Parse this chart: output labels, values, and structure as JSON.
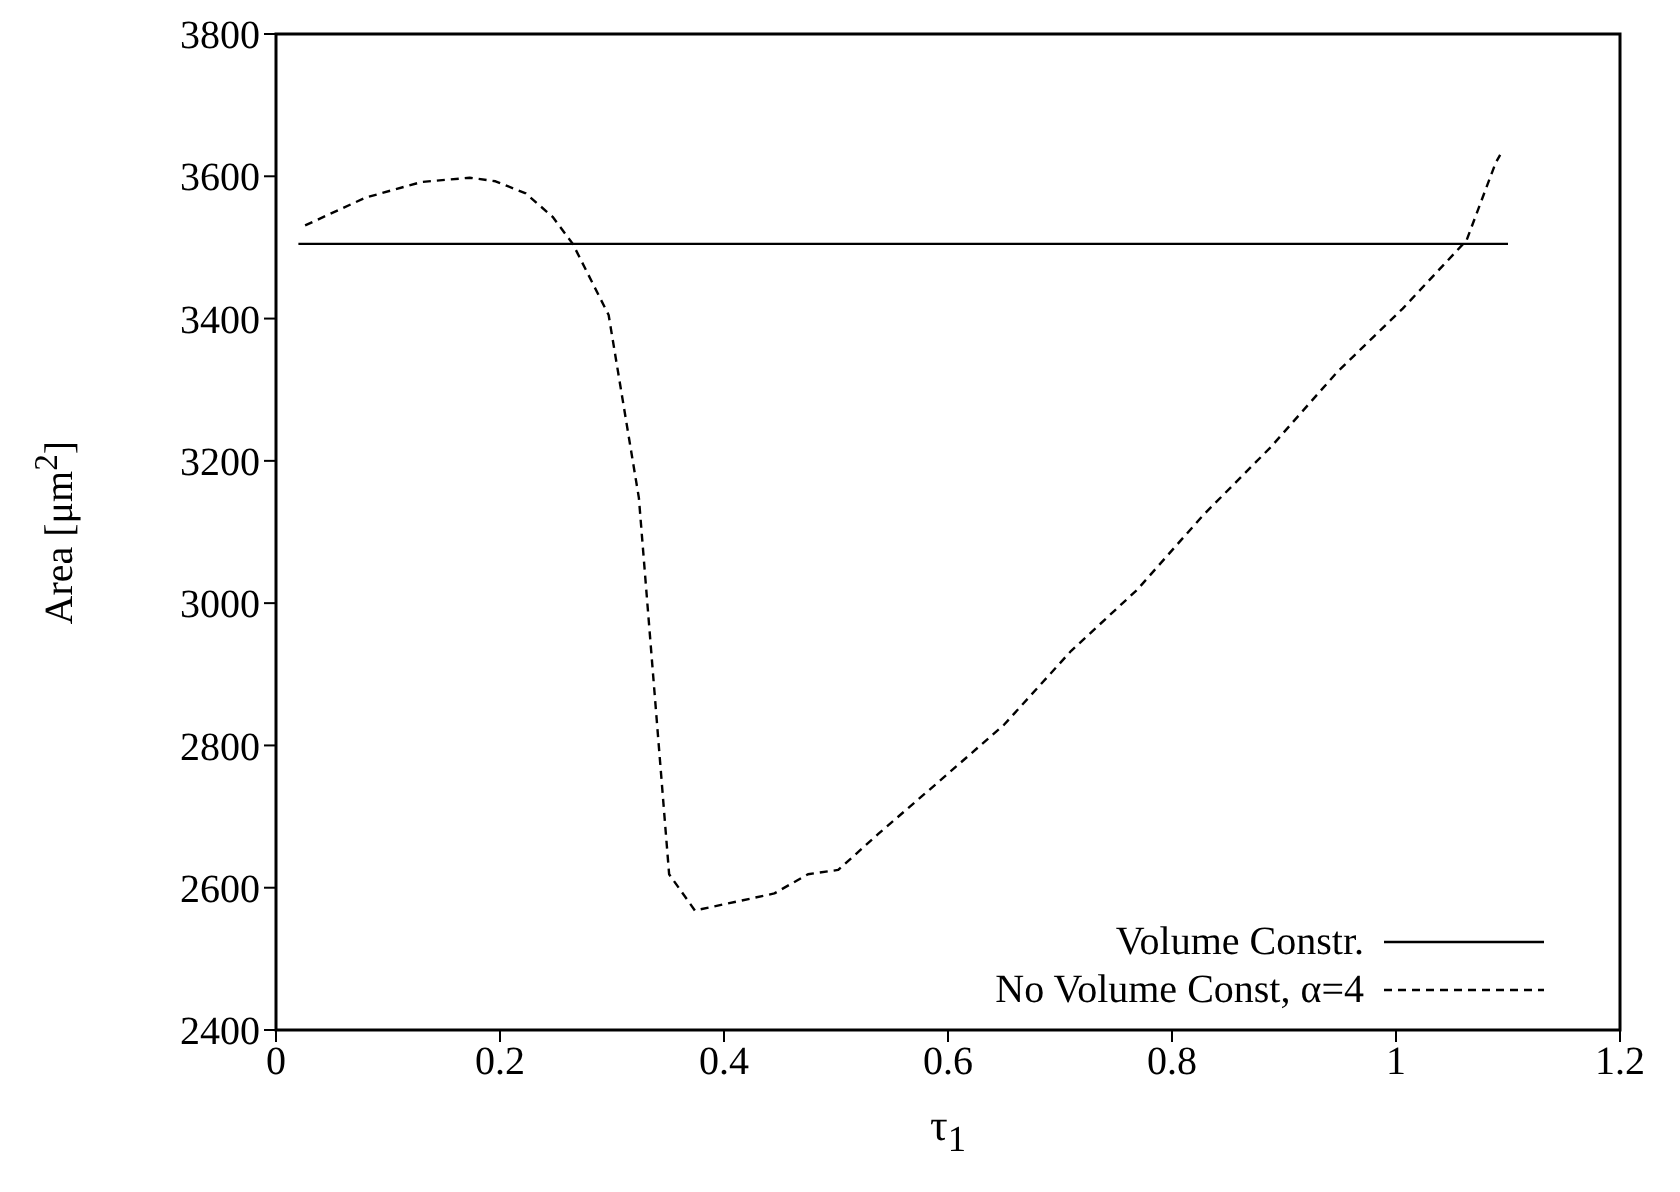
{
  "chart_data": {
    "type": "line",
    "xlabel": "τ$_{1}$",
    "ylabel": "Area [μm$^{2}$]",
    "xlim": [
      0,
      1.2
    ],
    "xticks": [
      0,
      0.2,
      0.4,
      0.6,
      0.8,
      1,
      1.2
    ],
    "ylim": [
      2400,
      3800
    ],
    "yticks": [
      2400,
      2600,
      2800,
      3000,
      3200,
      3400,
      3600,
      3800
    ],
    "legend": "bottom right",
    "marker": "none",
    "series": [
      {
        "name": "Volume Constr.",
        "color": "#000000",
        "line_style": "solid",
        "x": [
          0.02,
          1.1
        ],
        "values": [
          3505,
          3505
        ]
      },
      {
        "name": "No Volume Const, α=4",
        "color": "#000000",
        "line_style": "dashed",
        "x": [
          0.026,
          0.08,
          0.13,
          0.173,
          0.196,
          0.223,
          0.247,
          0.265,
          0.297,
          0.324,
          0.351,
          0.374,
          0.413,
          0.445,
          0.475,
          0.502,
          0.538,
          0.591,
          0.65,
          0.71,
          0.769,
          0.828,
          0.888,
          0.947,
          1.006,
          1.063,
          1.089,
          1.093
        ],
        "values": [
          3531,
          3570,
          3592,
          3598,
          3593,
          3576,
          3543,
          3505,
          3405,
          3148,
          2619,
          2568,
          2581,
          2592,
          2619,
          2625,
          2676,
          2748,
          2829,
          2933,
          3019,
          3124,
          3219,
          3324,
          3414,
          3510,
          3619,
          3630
        ]
      }
    ]
  }
}
